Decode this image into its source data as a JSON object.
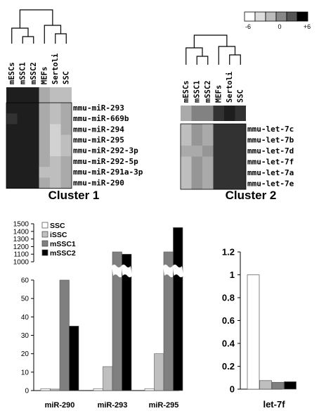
{
  "scale_legend": {
    "min_label": "-6",
    "mid_label": "0",
    "max_label": "+6",
    "colors": [
      "#ffffff",
      "#dddddd",
      "#bbbbbb",
      "#888888",
      "#555555",
      "#000000"
    ]
  },
  "cluster1": {
    "title": "Cluster 1",
    "columns": [
      "mESCs",
      "mSSC1",
      "mSSC2",
      "MEFs",
      "Sertoli",
      "SSC"
    ],
    "rows": [
      "mmu-miR-293",
      "mmu-miR-669b",
      "mmu-miR-294",
      "mmu-miR-295",
      "mmu-miR-292-3p",
      "mmu-miR-292-5p",
      "mmu-miR-291a-3p",
      "mmu-miR-290"
    ]
  },
  "cluster2": {
    "title": "Cluster 2",
    "columns": [
      "mESCs",
      "mSSC1",
      "mSSC2",
      "MEFs",
      "Sertoli",
      "SSC"
    ],
    "rows": [
      "mmu-let-7c",
      "mmu-let-7b",
      "mmu-let-7d",
      "mmu-let-7f",
      "mmu-let-7a",
      "mmu-let-7e"
    ]
  },
  "chart_data": [
    {
      "type": "heatmap",
      "title": "Cluster 1",
      "columns": [
        "mESCs",
        "mSSC1",
        "mSSC2",
        "MEFs",
        "Sertoli",
        "SSC"
      ],
      "rows": [
        "mmu-miR-293",
        "mmu-miR-669b",
        "mmu-miR-294",
        "mmu-miR-295",
        "mmu-miR-292-3p",
        "mmu-miR-292-5p",
        "mmu-miR-291a-3p",
        "mmu-miR-290"
      ],
      "value_range": [
        -6,
        6
      ],
      "summary_row": [
        5,
        5,
        5,
        -2,
        -3,
        -3
      ],
      "values": [
        [
          5,
          5,
          5,
          -2,
          -3,
          -2
        ],
        [
          4,
          5,
          5,
          -2,
          -3,
          -2
        ],
        [
          5,
          5,
          5,
          -2,
          -4,
          -2
        ],
        [
          5,
          5,
          5,
          -2,
          -4,
          -3
        ],
        [
          5,
          5,
          5,
          -2,
          -4,
          -3
        ],
        [
          5,
          5,
          5,
          -2,
          -3,
          -2
        ],
        [
          5,
          5,
          5,
          -3,
          -3,
          -2
        ],
        [
          5,
          5,
          5,
          -2,
          -3,
          -2
        ]
      ]
    },
    {
      "type": "heatmap",
      "title": "Cluster 2",
      "columns": [
        "mESCs",
        "mSSC1",
        "mSSC2",
        "MEFs",
        "Sertoli",
        "SSC"
      ],
      "rows": [
        "mmu-let-7c",
        "mmu-let-7b",
        "mmu-let-7d",
        "mmu-let-7f",
        "mmu-let-7a",
        "mmu-let-7e"
      ],
      "value_range": [
        -6,
        6
      ],
      "summary_row": [
        -2,
        0,
        0,
        4,
        5,
        4
      ],
      "values": [
        [
          -3,
          -1,
          -2,
          4,
          4,
          4
        ],
        [
          -3,
          -1,
          -2,
          4,
          4,
          4
        ],
        [
          -2,
          -2,
          -1,
          4,
          4,
          4
        ],
        [
          -3,
          -1,
          -2,
          4,
          4,
          4
        ],
        [
          -3,
          -1,
          -2,
          4,
          4,
          4
        ],
        [
          -3,
          -1,
          -2,
          4,
          4,
          4
        ]
      ]
    },
    {
      "type": "bar",
      "categories": [
        "miR-290",
        "miR-293",
        "miR-295"
      ],
      "axis_break": {
        "lower": [
          0,
          60
        ],
        "upper": [
          1000,
          1500
        ]
      },
      "yticks_lower": [
        0,
        10,
        20,
        30,
        40,
        50,
        60
      ],
      "yticks_upper": [
        1000,
        1100,
        1200,
        1300,
        1400,
        1500
      ],
      "legend_position": "top-left",
      "series": [
        {
          "name": "SSC",
          "color": "#ffffff",
          "values": [
            1,
            1,
            1
          ]
        },
        {
          "name": "iSSC",
          "color": "#bfbfbf",
          "values": [
            0.8,
            13,
            20
          ]
        },
        {
          "name": "mSSC1",
          "color": "#7f7f7f",
          "values": [
            60,
            1130,
            1130
          ]
        },
        {
          "name": "mSSC2",
          "color": "#000000",
          "values": [
            35,
            1100,
            1450
          ]
        }
      ]
    },
    {
      "type": "bar",
      "categories": [
        "let-7f"
      ],
      "ylim": [
        0,
        1.2
      ],
      "yticks": [
        0,
        0.2,
        0.4,
        0.6,
        0.8,
        1,
        1.2
      ],
      "series": [
        {
          "name": "SSC",
          "color": "#ffffff",
          "values": [
            1
          ]
        },
        {
          "name": "iSSC",
          "color": "#bfbfbf",
          "values": [
            0.075
          ]
        },
        {
          "name": "mSSC1",
          "color": "#7f7f7f",
          "values": [
            0.06
          ]
        },
        {
          "name": "mSSC2",
          "color": "#000000",
          "values": [
            0.065
          ]
        }
      ]
    }
  ]
}
